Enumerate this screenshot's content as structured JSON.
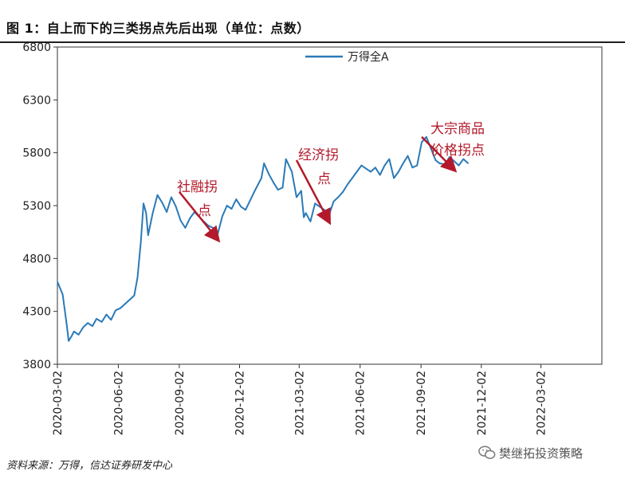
{
  "figure": {
    "title": "图 1：自上而下的三类拐点先后出现（单位：点数）",
    "source": "资料来源：万得，信达证券研发中心",
    "watermark": "樊继拓投资策略",
    "watermark_icon": "wechat-icon"
  },
  "chart_data": {
    "type": "line",
    "title": "",
    "xlabel": "",
    "ylabel": "",
    "legend_position": "top-center",
    "grid": false,
    "xlim": [
      "2020-03-02",
      "2022-06-02"
    ],
    "ylim": [
      3800,
      6800
    ],
    "yticks": [
      3800,
      4300,
      4800,
      5300,
      5800,
      6300,
      6800
    ],
    "xticks": [
      "2020-03-02",
      "2020-06-02",
      "2020-09-02",
      "2020-12-02",
      "2021-03-02",
      "2021-06-02",
      "2021-09-02",
      "2021-12-02",
      "2022-03-02"
    ],
    "series": [
      {
        "name": "万得全A",
        "color": "#2a7ab8",
        "x": [
          "2020-03-02",
          "2020-03-10",
          "2020-03-16",
          "2020-03-19",
          "2020-03-23",
          "2020-03-27",
          "2020-04-03",
          "2020-04-10",
          "2020-04-17",
          "2020-04-24",
          "2020-04-30",
          "2020-05-08",
          "2020-05-15",
          "2020-05-22",
          "2020-05-29",
          "2020-06-05",
          "2020-06-12",
          "2020-06-19",
          "2020-06-26",
          "2020-07-01",
          "2020-07-06",
          "2020-07-10",
          "2020-07-14",
          "2020-07-17",
          "2020-07-24",
          "2020-07-31",
          "2020-08-07",
          "2020-08-14",
          "2020-08-21",
          "2020-08-28",
          "2020-09-04",
          "2020-09-11",
          "2020-09-18",
          "2020-09-25",
          "2020-10-09",
          "2020-10-16",
          "2020-10-23",
          "2020-10-30",
          "2020-11-06",
          "2020-11-13",
          "2020-11-20",
          "2020-11-27",
          "2020-12-04",
          "2020-12-11",
          "2020-12-18",
          "2020-12-25",
          "2021-01-04",
          "2021-01-08",
          "2021-01-15",
          "2021-01-22",
          "2021-01-29",
          "2021-02-05",
          "2021-02-10",
          "2021-02-19",
          "2021-02-26",
          "2021-03-05",
          "2021-03-09",
          "2021-03-12",
          "2021-03-19",
          "2021-03-26",
          "2021-04-02",
          "2021-04-09",
          "2021-04-16",
          "2021-04-23",
          "2021-04-30",
          "2021-05-07",
          "2021-05-14",
          "2021-05-21",
          "2021-05-28",
          "2021-06-04",
          "2021-06-11",
          "2021-06-18",
          "2021-06-25",
          "2021-07-02",
          "2021-07-09",
          "2021-07-16",
          "2021-07-23",
          "2021-07-30",
          "2021-08-06",
          "2021-08-13",
          "2021-08-20",
          "2021-08-27",
          "2021-09-03",
          "2021-09-10",
          "2021-09-17",
          "2021-09-24",
          "2021-09-30",
          "2021-10-08",
          "2021-10-15",
          "2021-10-22",
          "2021-10-29",
          "2021-11-05",
          "2021-11-12"
        ],
        "values": [
          4580,
          4460,
          4180,
          4020,
          4060,
          4110,
          4080,
          4150,
          4190,
          4160,
          4230,
          4200,
          4270,
          4220,
          4310,
          4330,
          4370,
          4410,
          4450,
          4620,
          4960,
          5320,
          5230,
          5020,
          5230,
          5400,
          5330,
          5240,
          5380,
          5290,
          5160,
          5090,
          5180,
          5240,
          5150,
          5110,
          5090,
          5030,
          5200,
          5300,
          5270,
          5360,
          5290,
          5260,
          5350,
          5440,
          5560,
          5700,
          5600,
          5520,
          5450,
          5470,
          5740,
          5620,
          5380,
          5440,
          5190,
          5230,
          5150,
          5320,
          5290,
          5260,
          5210,
          5340,
          5380,
          5430,
          5500,
          5560,
          5620,
          5680,
          5650,
          5620,
          5660,
          5590,
          5680,
          5740,
          5560,
          5620,
          5700,
          5770,
          5660,
          5680,
          5900,
          5950,
          5840,
          5730,
          5700,
          5690,
          5760,
          5720,
          5680,
          5740,
          5700
        ]
      }
    ],
    "annotations": [
      {
        "text": "社融拐点",
        "arrow_from": "2020-09-02",
        "arrow_to": "2020-10-30",
        "from_value": 5430,
        "to_value": 4980
      },
      {
        "text": "经济拐点",
        "arrow_from": "2021-02-26",
        "arrow_to": "2021-04-16",
        "from_value": 5730,
        "to_value": 5150
      },
      {
        "text": "大宗商品价格拐点",
        "arrow_from": "2021-09-03",
        "arrow_to": "2021-10-22",
        "from_value": 5950,
        "to_value": 5640
      }
    ],
    "annotation_color": "#b3192a"
  }
}
